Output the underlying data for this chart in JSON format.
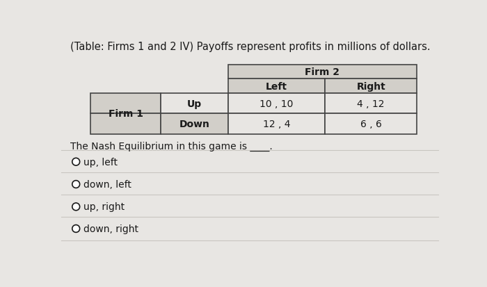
{
  "title": "(Table: Firms 1 and 2 IV) Payoffs represent profits in millions of dollars.",
  "title_fontsize": 10.5,
  "firm2_label": "Firm 2",
  "firm1_label": "Firm 1",
  "col_headers": [
    "Left",
    "Right"
  ],
  "row_headers": [
    "Up",
    "Down"
  ],
  "payoffs": [
    [
      "10 , 10",
      "4 , 12"
    ],
    [
      "12 , 4",
      "6 , 6"
    ]
  ],
  "nash_text": "The Nash Equilibrium in this game is ____.",
  "options": [
    "up, left",
    "down, left",
    "up, right",
    "down, right"
  ],
  "bg_color": "#e8e6e3",
  "table_bg": "#e8e6e3",
  "header_bg": "#d2cfc9",
  "text_color": "#1a1a1a",
  "border_color": "#444444",
  "option_sep_color": "#c8c5c0",
  "white": "#ffffff"
}
